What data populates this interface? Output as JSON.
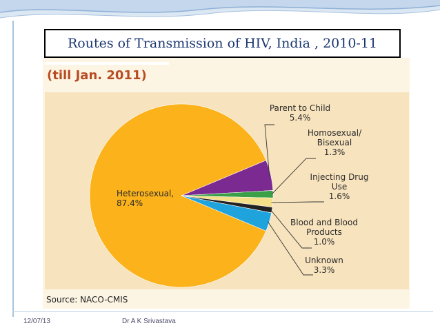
{
  "slide": {
    "title": "Routes of Transmission of HIV, India , 2010-11",
    "footer_date": "12/07/13",
    "footer_author": "Dr A K Srivastava"
  },
  "figure": {
    "subtitle": "(till Jan. 2011)",
    "source": "Source: NACO-CMIS"
  },
  "chart_data": {
    "type": "pie",
    "title": "Routes of Transmission of HIV, India , 2010-11",
    "subtitle": "(till Jan. 2011)",
    "source": "Source: NACO-CMIS",
    "slices": [
      {
        "name": "Heterosexual",
        "label_lines": [
          "Heterosexual,",
          "87.4%"
        ],
        "value": 87.4,
        "color": "#fbb21b"
      },
      {
        "name": "Parent to Child",
        "label_lines": [
          "Parent to Child",
          "5.4%"
        ],
        "value": 5.4,
        "color": "#7b2a91"
      },
      {
        "name": "Homosexual/Bisexual",
        "label_lines": [
          "Homosexual/",
          "Bisexual",
          "1.3%"
        ],
        "value": 1.3,
        "color": "#3aa048"
      },
      {
        "name": "Injecting Drug Use",
        "label_lines": [
          "Injecting Drug",
          "Use",
          "1.6%"
        ],
        "value": 1.6,
        "color": "#f5e08a"
      },
      {
        "name": "Blood and Blood Products",
        "label_lines": [
          "Blood and Blood",
          "Products",
          "1.0%"
        ],
        "value": 1.0,
        "color": "#222222"
      },
      {
        "name": "Unknown",
        "label_lines": [
          "Unknown",
          "3.3%"
        ],
        "value": 3.3,
        "color": "#1fa3dd"
      }
    ]
  }
}
